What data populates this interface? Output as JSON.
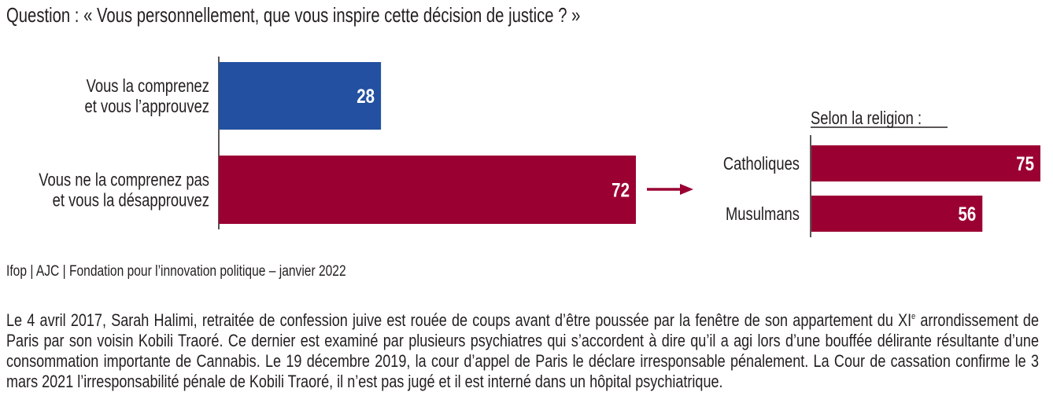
{
  "title": "Question : « Vous personnellement, que vous inspire cette décision de justice ? »",
  "source": "Ifop | AJC | Fondation pour l’innovation politique – janvier 2022",
  "body_text": {
    "part1": "Le 4 avril 2017, Sarah Halimi, retraitée de confession juive est rouée de coups avant d’être poussée par la fenêtre de son appartement du XI",
    "sup": "e",
    "part2": " arrondissement de Paris par son voisin Kobili Traoré. Ce dernier est examiné par plusieurs psychiatres qui s’accordent à dire qu’il a agi lors d’une bouffée délirante résultante d’une consommation importante de Cannabis. Le 19 décembre 2019, la cour d’appel de Paris le déclare irresponsable pénalement. La Cour de cassation confirme le 3 mars 2021 l’irresponsabilité pénale de Kobili Traoré, il n’est pas jugé et il est interné dans un hôpital psychiatrique."
  },
  "colors": {
    "approve": "#2350a0",
    "disapprove": "#9b0032",
    "text": "#231f20",
    "bar_label": "#ffffff"
  },
  "chart_data": [
    {
      "type": "bar",
      "orientation": "horizontal",
      "title": "Question : « Vous personnellement, que vous inspire cette décision de justice ? »",
      "categories": [
        [
          "Vous la comprenez",
          "et vous l’approuvez"
        ],
        [
          "Vous ne la comprenez pas",
          "et vous la désapprouvez"
        ]
      ],
      "values": [
        28,
        72
      ],
      "unit": "%",
      "colors": [
        "#2350a0",
        "#9b0032"
      ],
      "xlim": [
        0,
        100
      ],
      "grid": false,
      "xlabel": "",
      "ylabel": ""
    },
    {
      "type": "bar",
      "orientation": "horizontal",
      "title": "Selon la religion :",
      "subset_of": "Vous ne la comprenez pas et vous la désapprouvez",
      "categories": [
        "Catholiques",
        "Musulmans"
      ],
      "values": [
        75,
        56
      ],
      "unit": "%",
      "colors": [
        "#9b0032",
        "#9b0032"
      ],
      "xlim": [
        0,
        100
      ],
      "grid": false,
      "xlabel": "",
      "ylabel": ""
    }
  ]
}
